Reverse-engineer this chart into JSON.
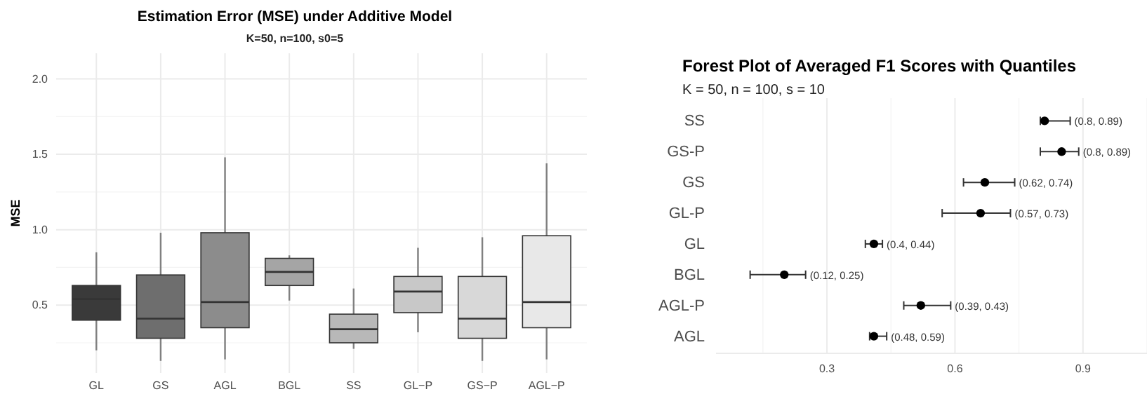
{
  "chart_data": [
    {
      "type": "box",
      "title": "Estimation Error (MSE) under Additive Model",
      "subtitle": "K=50, n=100, s0=5",
      "ylabel": "MSE",
      "categories": [
        "GL",
        "GS",
        "AGL",
        "BGL",
        "SS",
        "GL−P",
        "GS−P",
        "AGL−P"
      ],
      "colors": [
        "#3a3a3a",
        "#6e6e6e",
        "#8c8c8c",
        "#a5a5a5",
        "#b8b8b8",
        "#c8c8c8",
        "#d8d8d8",
        "#e8e8e8"
      ],
      "boxes": [
        {
          "low": 0.2,
          "q1": 0.4,
          "median": 0.54,
          "q3": 0.63,
          "high": 0.85
        },
        {
          "low": 0.13,
          "q1": 0.28,
          "median": 0.41,
          "q3": 0.7,
          "high": 0.98
        },
        {
          "low": 0.14,
          "q1": 0.35,
          "median": 0.52,
          "q3": 0.98,
          "high": 1.48
        },
        {
          "low": 0.53,
          "q1": 0.63,
          "median": 0.72,
          "q3": 0.81,
          "high": 0.83
        },
        {
          "low": 0.21,
          "q1": 0.25,
          "median": 0.34,
          "q3": 0.44,
          "high": 0.61
        },
        {
          "low": 0.32,
          "q1": 0.45,
          "median": 0.59,
          "q3": 0.69,
          "high": 0.88
        },
        {
          "low": 0.13,
          "q1": 0.28,
          "median": 0.41,
          "q3": 0.69,
          "high": 0.95
        },
        {
          "low": 0.14,
          "q1": 0.35,
          "median": 0.52,
          "q3": 0.96,
          "high": 1.44
        }
      ],
      "ylim": [
        0.05,
        2.17
      ],
      "yticks": [
        0.5,
        {
          "value": 1,
          "label": "1.0"
        },
        1.5,
        {
          "value": 2,
          "label": "2.0"
        }
      ],
      "grid": true
    },
    {
      "type": "scatter",
      "orientation": "horizontal",
      "title": "Forest Plot of Averaged F1 Scores with Quantiles",
      "subtitle": "K = 50, n = 100, s = 10",
      "categories": [
        "SS",
        "GS-P",
        "GS",
        "GL-P",
        "GL",
        "BGL",
        "AGL-P",
        "AGL"
      ],
      "values": [
        0.81,
        0.85,
        0.67,
        0.66,
        0.41,
        0.2,
        0.52,
        0.41
      ],
      "errors": [
        [
          0.8,
          0.87
        ],
        [
          0.8,
          0.89
        ],
        [
          0.62,
          0.74
        ],
        [
          0.57,
          0.73
        ],
        [
          0.39,
          0.43
        ],
        [
          0.12,
          0.25
        ],
        [
          0.48,
          0.59
        ],
        [
          0.4,
          0.44
        ]
      ],
      "value_labels": [
        "(0.8, 0.89)",
        "(0.8, 0.89)",
        "(0.62, 0.74)",
        "(0.57, 0.73)",
        "(0.4, 0.44)",
        "(0.12, 0.25)",
        "(0.39, 0.43)",
        "(0.48, 0.59)"
      ],
      "color": "#000000",
      "marker": "circle",
      "xlim": [
        0.04,
        1.05
      ],
      "xticks": [
        0.3,
        0.6,
        0.9
      ],
      "grid": "x"
    }
  ]
}
